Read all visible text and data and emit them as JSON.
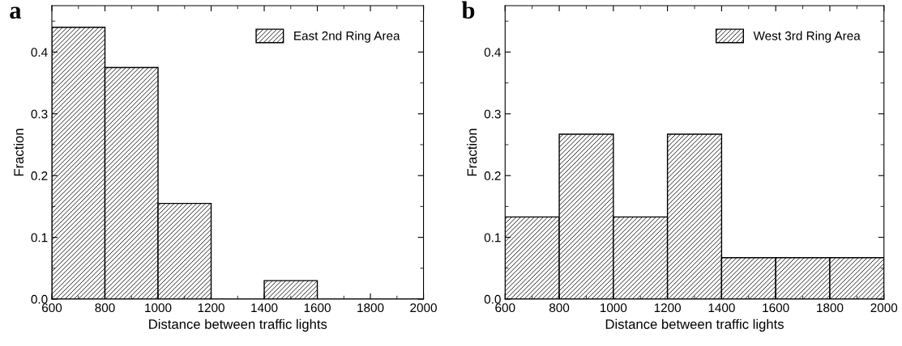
{
  "chart_data": [
    {
      "type": "histogram",
      "title": "a",
      "xlabel": "Distance between traffic lights",
      "ylabel": "Fraction",
      "bins": [
        600,
        800,
        1000,
        1200,
        1400,
        1600,
        1800,
        2000
      ],
      "series": [
        {
          "name": "East 2nd Ring Area",
          "color": "#000000",
          "values": [
            0.44,
            0.375,
            0.155,
            0,
            0.03,
            0,
            0
          ]
        }
      ],
      "xlim": [
        600,
        2000
      ],
      "xticks": [
        600,
        800,
        1000,
        1200,
        1400,
        1600,
        1800,
        2000
      ],
      "ylim": [
        0,
        0.475
      ],
      "yticks": [
        {
          "value": 0,
          "label": "0.0"
        },
        0.1,
        0.2,
        0.3,
        0.4
      ],
      "legend": "top right",
      "grid": false
    },
    {
      "type": "histogram",
      "title": "b",
      "xlabel": "Distance between traffic lights",
      "ylabel": "Fraction",
      "bins": [
        600,
        800,
        1000,
        1200,
        1400,
        1600,
        1800,
        2000
      ],
      "series": [
        {
          "name": "West 3rd Ring Area",
          "color": "#000000",
          "values": [
            0.133,
            0.267,
            0.133,
            0.267,
            0.067,
            0.067,
            0.067
          ]
        }
      ],
      "xlim": [
        600,
        2000
      ],
      "xticks": [
        600,
        800,
        1000,
        1200,
        1400,
        1600,
        1800,
        2000
      ],
      "ylim": [
        0,
        0.475
      ],
      "yticks": [
        {
          "value": 0,
          "label": "0.0"
        },
        0.1,
        0.2,
        0.3,
        0.4
      ],
      "legend": "top right",
      "grid": false
    }
  ]
}
